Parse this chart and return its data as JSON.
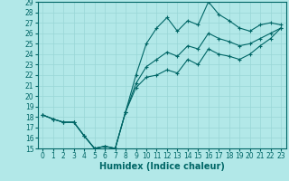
{
  "xlabel": "Humidex (Indice chaleur)",
  "background_color": "#b2e8e8",
  "grid_color": "#99d6d6",
  "line_color": "#006666",
  "x": [
    0,
    1,
    2,
    3,
    4,
    5,
    6,
    7,
    8,
    9,
    10,
    11,
    12,
    13,
    14,
    15,
    16,
    17,
    18,
    19,
    20,
    21,
    22,
    23
  ],
  "line1": [
    18.2,
    17.8,
    17.5,
    17.5,
    16.2,
    15.0,
    15.2,
    15.0,
    18.5,
    22.0,
    25.0,
    26.5,
    27.5,
    26.2,
    27.2,
    26.8,
    29.0,
    27.8,
    27.2,
    26.5,
    26.2,
    26.8,
    27.0,
    26.8
  ],
  "line2": [
    18.2,
    17.8,
    17.5,
    17.5,
    16.2,
    15.0,
    15.2,
    15.0,
    18.5,
    21.2,
    22.8,
    23.5,
    24.2,
    23.8,
    24.8,
    24.5,
    26.0,
    25.5,
    25.2,
    24.8,
    25.0,
    25.5,
    26.0,
    26.5
  ],
  "line3": [
    18.2,
    17.8,
    17.5,
    17.5,
    16.2,
    15.0,
    15.2,
    15.0,
    18.5,
    20.8,
    21.8,
    22.0,
    22.5,
    22.2,
    23.5,
    23.0,
    24.5,
    24.0,
    23.8,
    23.5,
    24.0,
    24.8,
    25.5,
    26.5
  ],
  "ylim": [
    15,
    29
  ],
  "xlim_min": -0.5,
  "xlim_max": 23.5,
  "yticks": [
    15,
    16,
    17,
    18,
    19,
    20,
    21,
    22,
    23,
    24,
    25,
    26,
    27,
    28,
    29
  ],
  "xticks": [
    0,
    1,
    2,
    3,
    4,
    5,
    6,
    7,
    8,
    9,
    10,
    11,
    12,
    13,
    14,
    15,
    16,
    17,
    18,
    19,
    20,
    21,
    22,
    23
  ],
  "marker": "+",
  "markersize": 3,
  "linewidth": 0.8,
  "xlabel_fontsize": 7,
  "tick_fontsize": 5.5
}
